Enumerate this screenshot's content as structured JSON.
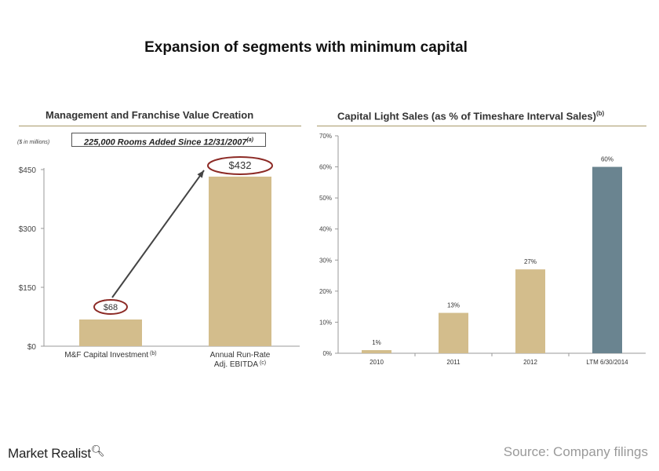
{
  "title": "Expansion of segments with minimum capital",
  "colors": {
    "bar_tan": "#d3bd8c",
    "bar_highlight": "#6a8490",
    "circle": "#8c2a25",
    "rule": "#a89a6a",
    "axis": "#999999"
  },
  "footer": {
    "logo": "Market Realist",
    "logo_icon": "magnifier-icon",
    "source": "Source: Company filings"
  },
  "chart_data": [
    {
      "type": "bar",
      "title": "Management and Franchise Value Creation",
      "unit_note": "($ in millions)",
      "callout": "225,000 Rooms Added Since 12/31/2007",
      "callout_sup": "(a)",
      "categories": [
        {
          "label": "M&F Capital Investment",
          "sup": "(b)"
        },
        {
          "label_lines": [
            "Annual Run-Rate",
            "Adj. EBITDA"
          ],
          "sup": "(c)"
        }
      ],
      "values": [
        68,
        432
      ],
      "data_labels": [
        "$68",
        "$432"
      ],
      "yticks": [
        0,
        150,
        300,
        450
      ],
      "ytick_labels": [
        "$0",
        "$150",
        "$300",
        "$450"
      ],
      "ylim": [
        0,
        450
      ]
    },
    {
      "type": "bar",
      "title": "Capital Light Sales (as % of Timeshare Interval Sales)",
      "title_sup": "(b)",
      "categories": [
        "2010",
        "2011",
        "2012",
        "LTM 6/30/2014"
      ],
      "values": [
        1,
        13,
        27,
        60
      ],
      "data_labels": [
        "1%",
        "13%",
        "27%",
        "60%"
      ],
      "yticks": [
        0,
        10,
        20,
        30,
        40,
        50,
        60,
        70
      ],
      "ytick_labels": [
        "0%",
        "10%",
        "20%",
        "30%",
        "40%",
        "50%",
        "60%",
        "70%"
      ],
      "ylim": [
        0,
        70
      ]
    }
  ]
}
